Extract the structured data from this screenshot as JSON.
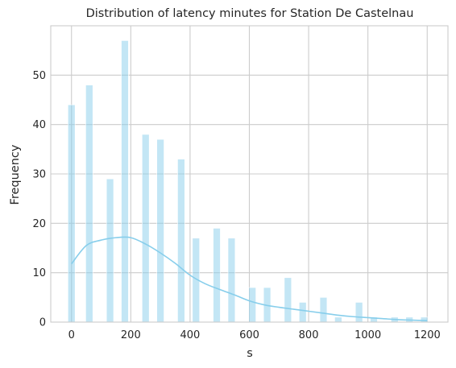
{
  "chart_data": {
    "type": "bar",
    "title": "Distribution of latency minutes for Station De Castelnau",
    "xlabel": "s",
    "ylabel": "Frequency",
    "xlim": [
      -70,
      1270
    ],
    "ylim": [
      0,
      60
    ],
    "xticks": [
      0,
      200,
      400,
      600,
      800,
      1000,
      1200
    ],
    "yticks": [
      0,
      10,
      20,
      30,
      40,
      50
    ],
    "grid": true,
    "bar_width": 24,
    "bar_color": "#87ceeb",
    "bars": [
      {
        "x": 0,
        "count": 44
      },
      {
        "x": 60,
        "count": 48
      },
      {
        "x": 130,
        "count": 29
      },
      {
        "x": 180,
        "count": 57
      },
      {
        "x": 250,
        "count": 38
      },
      {
        "x": 300,
        "count": 37
      },
      {
        "x": 370,
        "count": 33
      },
      {
        "x": 420,
        "count": 17
      },
      {
        "x": 490,
        "count": 19
      },
      {
        "x": 540,
        "count": 17
      },
      {
        "x": 610,
        "count": 7
      },
      {
        "x": 660,
        "count": 7
      },
      {
        "x": 730,
        "count": 9
      },
      {
        "x": 780,
        "count": 4
      },
      {
        "x": 850,
        "count": 5
      },
      {
        "x": 900,
        "count": 1
      },
      {
        "x": 970,
        "count": 4
      },
      {
        "x": 1020,
        "count": 1
      },
      {
        "x": 1090,
        "count": 1
      },
      {
        "x": 1140,
        "count": 1
      },
      {
        "x": 1190,
        "count": 1
      }
    ],
    "kde": {
      "color": "#87ceeb",
      "points": [
        [
          0,
          11.8
        ],
        [
          50,
          15.5
        ],
        [
          100,
          16.6
        ],
        [
          150,
          17.1
        ],
        [
          200,
          17.1
        ],
        [
          250,
          15.8
        ],
        [
          300,
          14.0
        ],
        [
          350,
          11.9
        ],
        [
          400,
          9.5
        ],
        [
          450,
          7.8
        ],
        [
          500,
          6.6
        ],
        [
          550,
          5.5
        ],
        [
          600,
          4.3
        ],
        [
          650,
          3.5
        ],
        [
          700,
          3.0
        ],
        [
          750,
          2.6
        ],
        [
          800,
          2.2
        ],
        [
          850,
          1.8
        ],
        [
          900,
          1.4
        ],
        [
          950,
          1.1
        ],
        [
          1000,
          0.9
        ],
        [
          1050,
          0.7
        ],
        [
          1100,
          0.5
        ],
        [
          1150,
          0.4
        ],
        [
          1200,
          0.3
        ]
      ]
    }
  }
}
